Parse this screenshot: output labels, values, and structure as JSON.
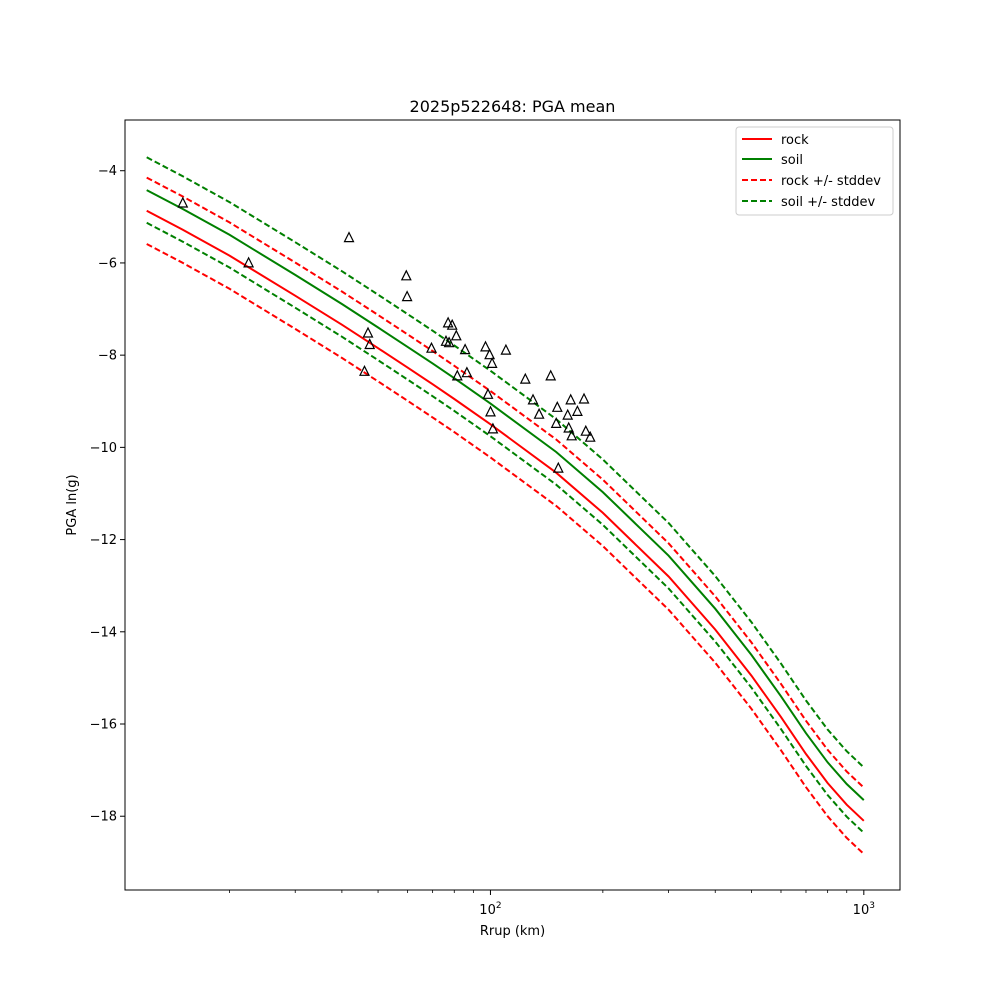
{
  "chart_data": {
    "type": "line",
    "title": "2025p522648: PGA mean",
    "xlabel": "Rrup (km)",
    "ylabel": "PGA ln(g)",
    "x_scale": "log",
    "xlim": [
      10.5,
      1250
    ],
    "ylim": [
      -19.6,
      -2.9
    ],
    "x_ticks": [
      {
        "value": 100,
        "base": "10",
        "exp": "2"
      },
      {
        "value": 1000,
        "base": "10",
        "exp": "3"
      }
    ],
    "y_ticks": [
      -4,
      -6,
      -8,
      -10,
      -12,
      -14,
      -16,
      -18
    ],
    "y_tick_labels": [
      "−4",
      "−6",
      "−8",
      "−10",
      "−12",
      "−14",
      "−16",
      "−18"
    ],
    "grid": false,
    "legend_position": "top-right",
    "legend": [
      "rock",
      "soil",
      "rock +/- stddev",
      "soil +/- stddev"
    ],
    "colors": {
      "rock": "#ff0000",
      "soil": "#008000",
      "points": "#000000"
    },
    "x": [
      12,
      15,
      20,
      30,
      40,
      50,
      60,
      70,
      80,
      100,
      150,
      200,
      300,
      400,
      500,
      600,
      700,
      800,
      900,
      1000
    ],
    "series": [
      {
        "name": "rock",
        "color": "#ff0000",
        "style": "solid",
        "values": [
          -4.87,
          -5.28,
          -5.84,
          -6.71,
          -7.34,
          -7.85,
          -8.27,
          -8.63,
          -8.95,
          -9.5,
          -10.55,
          -11.42,
          -12.8,
          -13.95,
          -14.95,
          -15.85,
          -16.65,
          -17.28,
          -17.75,
          -18.1
        ]
      },
      {
        "name": "soil",
        "color": "#008000",
        "style": "solid",
        "values": [
          -4.42,
          -4.83,
          -5.39,
          -6.26,
          -6.89,
          -7.4,
          -7.82,
          -8.18,
          -8.5,
          -9.05,
          -10.1,
          -10.97,
          -12.35,
          -13.5,
          -14.5,
          -15.4,
          -16.2,
          -16.83,
          -17.3,
          -17.65
        ]
      },
      {
        "name": "rock +/- stddev",
        "color": "#ff0000",
        "style": "dashed",
        "values": [
          -4.15,
          -4.56,
          -5.12,
          -5.99,
          -6.62,
          -7.13,
          -7.55,
          -7.91,
          -8.23,
          -8.78,
          -9.83,
          -10.7,
          -12.08,
          -13.23,
          -14.23,
          -15.13,
          -15.93,
          -16.56,
          -17.03,
          -17.38
        ]
      },
      {
        "name": "rock +/- stddev",
        "color": "#ff0000",
        "style": "dashed",
        "values": [
          -5.59,
          -6.0,
          -6.56,
          -7.43,
          -8.06,
          -8.57,
          -8.99,
          -9.35,
          -9.67,
          -10.22,
          -11.27,
          -12.14,
          -13.52,
          -14.67,
          -15.67,
          -16.57,
          -17.37,
          -18.0,
          -18.47,
          -18.82
        ]
      },
      {
        "name": "soil +/- stddev",
        "color": "#008000",
        "style": "dashed",
        "values": [
          -3.71,
          -4.12,
          -4.68,
          -5.55,
          -6.18,
          -6.69,
          -7.11,
          -7.47,
          -7.79,
          -8.34,
          -9.39,
          -10.26,
          -11.64,
          -12.79,
          -13.79,
          -14.69,
          -15.49,
          -16.12,
          -16.59,
          -16.94
        ]
      },
      {
        "name": "soil +/- stddev",
        "color": "#008000",
        "style": "dashed",
        "values": [
          -5.13,
          -5.54,
          -6.1,
          -6.97,
          -7.6,
          -8.11,
          -8.53,
          -8.89,
          -9.21,
          -9.76,
          -10.81,
          -11.68,
          -13.06,
          -14.21,
          -15.21,
          -16.11,
          -16.91,
          -17.54,
          -18.01,
          -18.36
        ]
      }
    ],
    "observations": [
      {
        "x": 15,
        "y": -4.7
      },
      {
        "x": 22.5,
        "y": -6.0
      },
      {
        "x": 41.8,
        "y": -5.45
      },
      {
        "x": 46,
        "y": -8.35
      },
      {
        "x": 47,
        "y": -7.52
      },
      {
        "x": 47.5,
        "y": -7.77
      },
      {
        "x": 59.5,
        "y": -6.28
      },
      {
        "x": 59.8,
        "y": -6.73
      },
      {
        "x": 69.5,
        "y": -7.85
      },
      {
        "x": 76,
        "y": -7.7
      },
      {
        "x": 77,
        "y": -7.3
      },
      {
        "x": 77.5,
        "y": -7.73
      },
      {
        "x": 79,
        "y": -7.35
      },
      {
        "x": 81,
        "y": -7.58
      },
      {
        "x": 81.5,
        "y": -8.45
      },
      {
        "x": 85.5,
        "y": -7.88
      },
      {
        "x": 86.5,
        "y": -8.38
      },
      {
        "x": 97,
        "y": -7.82
      },
      {
        "x": 98.5,
        "y": -8.85
      },
      {
        "x": 99.5,
        "y": -7.99
      },
      {
        "x": 100,
        "y": -9.23
      },
      {
        "x": 101,
        "y": -8.18
      },
      {
        "x": 101.5,
        "y": -9.6
      },
      {
        "x": 110,
        "y": -7.89
      },
      {
        "x": 124,
        "y": -8.52
      },
      {
        "x": 130,
        "y": -8.97
      },
      {
        "x": 135,
        "y": -9.28
      },
      {
        "x": 145,
        "y": -8.45
      },
      {
        "x": 150,
        "y": -9.48
      },
      {
        "x": 151,
        "y": -9.13
      },
      {
        "x": 152,
        "y": -10.45
      },
      {
        "x": 161,
        "y": -9.3
      },
      {
        "x": 162,
        "y": -9.58
      },
      {
        "x": 164,
        "y": -8.97
      },
      {
        "x": 165,
        "y": -9.75
      },
      {
        "x": 171,
        "y": -9.22
      },
      {
        "x": 178,
        "y": -8.95
      },
      {
        "x": 180,
        "y": -9.65
      },
      {
        "x": 185,
        "y": -9.78
      }
    ]
  }
}
